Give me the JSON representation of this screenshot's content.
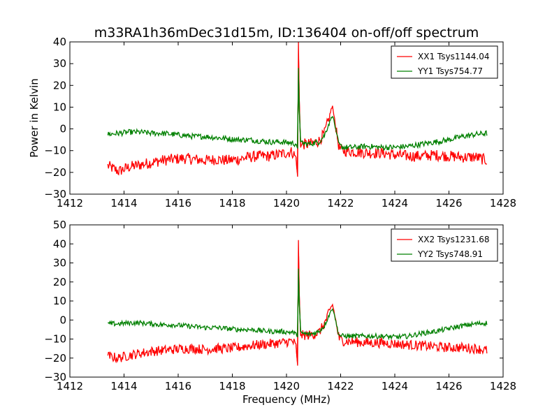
{
  "title": "m33RA1h36mDec31d15m, ID:136404 on-off/off spectrum",
  "chart_data": [
    {
      "type": "line",
      "xlabel": "",
      "ylabel": "Power in Kelvin",
      "xlim": [
        1412,
        1428
      ],
      "ylim": [
        -30,
        40
      ],
      "xticks": [
        "1412",
        "1414",
        "1416",
        "1418",
        "1420",
        "1422",
        "1424",
        "1426",
        "1428"
      ],
      "yticks": [
        "-30",
        "-20",
        "-10",
        "0",
        "10",
        "20",
        "30",
        "40"
      ],
      "legend_position": "top-right",
      "series": [
        {
          "name": "XX1 Tsys1144.04",
          "color": "#ff0000",
          "points": [
            [
              1413.4,
              -17
            ],
            [
              1413.8,
              -19.5
            ],
            [
              1414.2,
              -17.5
            ],
            [
              1414.6,
              -16.5
            ],
            [
              1415.0,
              -15.5
            ],
            [
              1415.4,
              -14.5
            ],
            [
              1415.8,
              -14
            ],
            [
              1416.2,
              -13.5
            ],
            [
              1416.6,
              -14
            ],
            [
              1417.0,
              -14.5
            ],
            [
              1417.4,
              -14
            ],
            [
              1417.8,
              -14.5
            ],
            [
              1418.2,
              -14
            ],
            [
              1418.6,
              -13
            ],
            [
              1419.0,
              -12.5
            ],
            [
              1419.4,
              -12.5
            ],
            [
              1419.8,
              -11.5
            ],
            [
              1420.2,
              -10.5
            ],
            [
              1420.35,
              -13
            ],
            [
              1420.41,
              -22
            ],
            [
              1420.44,
              40
            ],
            [
              1420.47,
              15
            ],
            [
              1420.52,
              -8
            ],
            [
              1420.6,
              -7
            ],
            [
              1420.8,
              -7
            ],
            [
              1421.0,
              -6.5
            ],
            [
              1421.2,
              -5.5
            ],
            [
              1421.4,
              -2
            ],
            [
              1421.55,
              4
            ],
            [
              1421.65,
              9
            ],
            [
              1421.7,
              10
            ],
            [
              1421.75,
              7
            ],
            [
              1421.85,
              -2
            ],
            [
              1421.95,
              -9
            ],
            [
              1422.1,
              -10
            ],
            [
              1422.5,
              -10.5
            ],
            [
              1423.0,
              -11
            ],
            [
              1423.5,
              -11
            ],
            [
              1424.0,
              -12
            ],
            [
              1424.5,
              -12.5
            ],
            [
              1425.0,
              -12.5
            ],
            [
              1425.5,
              -12
            ],
            [
              1426.0,
              -12.5
            ],
            [
              1426.5,
              -13
            ],
            [
              1427.0,
              -13
            ],
            [
              1427.4,
              -14.5
            ]
          ]
        },
        {
          "name": "YY1 Tsys754.77",
          "color": "#008000",
          "points": [
            [
              1413.4,
              -2.5
            ],
            [
              1413.8,
              -2
            ],
            [
              1414.2,
              -1.5
            ],
            [
              1414.6,
              -1.5
            ],
            [
              1415.0,
              -2
            ],
            [
              1415.4,
              -2
            ],
            [
              1415.8,
              -2.5
            ],
            [
              1416.2,
              -3
            ],
            [
              1416.6,
              -3.5
            ],
            [
              1417.0,
              -3.5
            ],
            [
              1417.4,
              -4
            ],
            [
              1417.8,
              -4.5
            ],
            [
              1418.2,
              -5
            ],
            [
              1418.6,
              -5
            ],
            [
              1419.0,
              -5.5
            ],
            [
              1419.4,
              -6
            ],
            [
              1419.8,
              -6
            ],
            [
              1420.2,
              -6.5
            ],
            [
              1420.35,
              -7
            ],
            [
              1420.41,
              -9
            ],
            [
              1420.44,
              28
            ],
            [
              1420.47,
              10
            ],
            [
              1420.52,
              -6
            ],
            [
              1420.6,
              -6.5
            ],
            [
              1420.8,
              -7
            ],
            [
              1421.0,
              -6.5
            ],
            [
              1421.2,
              -6
            ],
            [
              1421.4,
              -3
            ],
            [
              1421.55,
              2
            ],
            [
              1421.65,
              5
            ],
            [
              1421.7,
              6
            ],
            [
              1421.75,
              4
            ],
            [
              1421.85,
              -3
            ],
            [
              1421.95,
              -7.5
            ],
            [
              1422.1,
              -8.5
            ],
            [
              1422.5,
              -8.5
            ],
            [
              1423.0,
              -8
            ],
            [
              1423.5,
              -8.5
            ],
            [
              1424.0,
              -8.5
            ],
            [
              1424.5,
              -8
            ],
            [
              1425.0,
              -7
            ],
            [
              1425.5,
              -6
            ],
            [
              1426.0,
              -5
            ],
            [
              1426.5,
              -3.5
            ],
            [
              1427.0,
              -2.5
            ],
            [
              1427.4,
              -2
            ]
          ]
        }
      ]
    },
    {
      "type": "line",
      "xlabel": "Frequency (MHz)",
      "ylabel": "",
      "xlim": [
        1412,
        1428
      ],
      "ylim": [
        -30,
        50
      ],
      "xticks": [
        "1412",
        "1414",
        "1416",
        "1418",
        "1420",
        "1422",
        "1424",
        "1426",
        "1428"
      ],
      "yticks": [
        "-30",
        "-20",
        "-10",
        "0",
        "10",
        "20",
        "30",
        "40",
        "50"
      ],
      "legend_position": "top-right",
      "series": [
        {
          "name": "XX2 Tsys1231.68",
          "color": "#ff0000",
          "points": [
            [
              1413.4,
              -19
            ],
            [
              1413.8,
              -20
            ],
            [
              1414.2,
              -18.5
            ],
            [
              1414.6,
              -17.5
            ],
            [
              1415.0,
              -16.5
            ],
            [
              1415.4,
              -16
            ],
            [
              1415.8,
              -15.5
            ],
            [
              1416.2,
              -15
            ],
            [
              1416.6,
              -15
            ],
            [
              1417.0,
              -15.5
            ],
            [
              1417.4,
              -15
            ],
            [
              1417.8,
              -15
            ],
            [
              1418.2,
              -14.5
            ],
            [
              1418.6,
              -13.5
            ],
            [
              1419.0,
              -13
            ],
            [
              1419.4,
              -12.5
            ],
            [
              1419.8,
              -12
            ],
            [
              1420.2,
              -11
            ],
            [
              1420.35,
              -13
            ],
            [
              1420.41,
              -24
            ],
            [
              1420.44,
              42
            ],
            [
              1420.47,
              15
            ],
            [
              1420.52,
              -8
            ],
            [
              1420.6,
              -8
            ],
            [
              1420.8,
              -8
            ],
            [
              1421.0,
              -7.5
            ],
            [
              1421.2,
              -6.5
            ],
            [
              1421.4,
              -2
            ],
            [
              1421.55,
              3
            ],
            [
              1421.65,
              7
            ],
            [
              1421.7,
              8
            ],
            [
              1421.75,
              5
            ],
            [
              1421.85,
              -3
            ],
            [
              1421.95,
              -10
            ],
            [
              1422.1,
              -11
            ],
            [
              1422.5,
              -11.5
            ],
            [
              1423.0,
              -12
            ],
            [
              1423.5,
              -12
            ],
            [
              1424.0,
              -12.5
            ],
            [
              1424.5,
              -13
            ],
            [
              1425.0,
              -13.5
            ],
            [
              1425.5,
              -14
            ],
            [
              1426.0,
              -14.5
            ],
            [
              1426.5,
              -14.5
            ],
            [
              1427.0,
              -15
            ],
            [
              1427.4,
              -16
            ]
          ]
        },
        {
          "name": "YY2 Tsys748.91",
          "color": "#008000",
          "points": [
            [
              1413.4,
              -2
            ],
            [
              1413.8,
              -2
            ],
            [
              1414.2,
              -1.5
            ],
            [
              1414.6,
              -1.5
            ],
            [
              1415.0,
              -2
            ],
            [
              1415.4,
              -2.5
            ],
            [
              1415.8,
              -2.5
            ],
            [
              1416.2,
              -3
            ],
            [
              1416.6,
              -3.5
            ],
            [
              1417.0,
              -4
            ],
            [
              1417.4,
              -4
            ],
            [
              1417.8,
              -4.5
            ],
            [
              1418.2,
              -5
            ],
            [
              1418.6,
              -5
            ],
            [
              1419.0,
              -5.5
            ],
            [
              1419.4,
              -6
            ],
            [
              1419.8,
              -6
            ],
            [
              1420.2,
              -6.5
            ],
            [
              1420.35,
              -7
            ],
            [
              1420.41,
              -9
            ],
            [
              1420.44,
              27
            ],
            [
              1420.47,
              10
            ],
            [
              1420.52,
              -6
            ],
            [
              1420.6,
              -7
            ],
            [
              1420.8,
              -7.5
            ],
            [
              1421.0,
              -7
            ],
            [
              1421.2,
              -6
            ],
            [
              1421.4,
              -3
            ],
            [
              1421.55,
              2
            ],
            [
              1421.65,
              5
            ],
            [
              1421.7,
              6
            ],
            [
              1421.75,
              4
            ],
            [
              1421.85,
              -3
            ],
            [
              1421.95,
              -8
            ],
            [
              1422.1,
              -8.5
            ],
            [
              1422.5,
              -8.5
            ],
            [
              1423.0,
              -8.5
            ],
            [
              1423.5,
              -8.5
            ],
            [
              1424.0,
              -9
            ],
            [
              1424.5,
              -8.5
            ],
            [
              1425.0,
              -7
            ],
            [
              1425.5,
              -6
            ],
            [
              1426.0,
              -4.5
            ],
            [
              1426.5,
              -3
            ],
            [
              1427.0,
              -2
            ],
            [
              1427.4,
              -1.5
            ]
          ]
        }
      ]
    }
  ]
}
